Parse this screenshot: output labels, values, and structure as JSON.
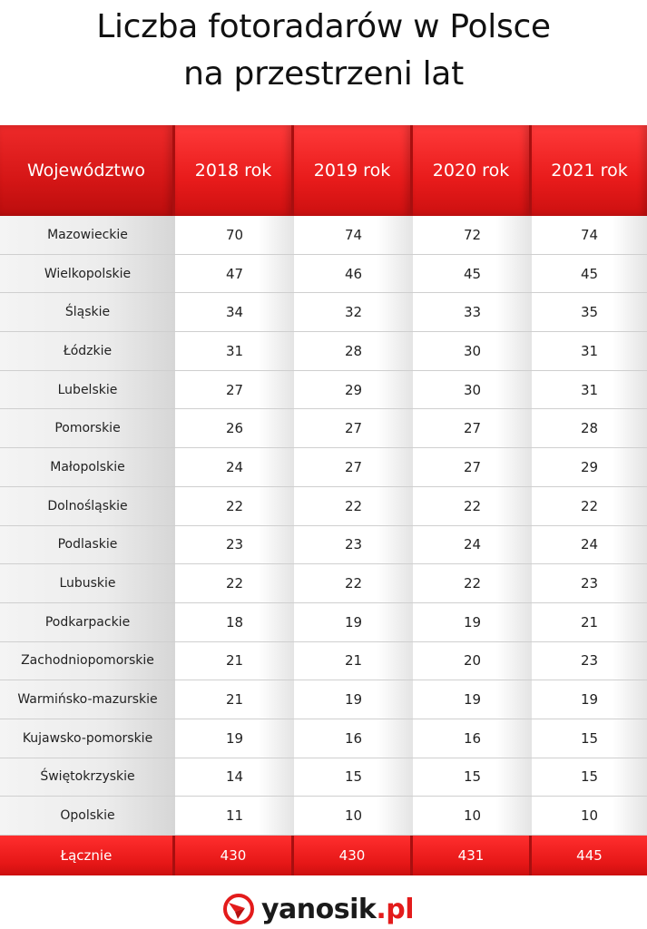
{
  "title_line1": "Liczba fotoradarów w Polsce",
  "title_line2": "na przestrzeni lat",
  "brand_color": "#e61717",
  "logo": {
    "name": "yanosik",
    "tld": ".pl",
    "icon": "yanosik-logo-icon"
  },
  "chart_data": {
    "type": "table",
    "columns": [
      "Województwo",
      "2018 rok",
      "2019 rok",
      "2020 rok",
      "2021 rok"
    ],
    "rows": [
      [
        "Mazowieckie",
        "70",
        "74",
        "72",
        "74"
      ],
      [
        "Wielkopolskie",
        "47",
        "46",
        "45",
        "45"
      ],
      [
        "Śląskie",
        "34",
        "32",
        "33",
        "35"
      ],
      [
        "Łódzkie",
        "31",
        "28",
        "30",
        "31"
      ],
      [
        "Lubelskie",
        "27",
        "29",
        "30",
        "31"
      ],
      [
        "Pomorskie",
        "26",
        "27",
        "27",
        "28"
      ],
      [
        "Małopolskie",
        "24",
        "27",
        "27",
        "29"
      ],
      [
        "Dolnośląskie",
        "22",
        "22",
        "22",
        "22"
      ],
      [
        "Podlaskie",
        "23",
        "23",
        "24",
        "24"
      ],
      [
        "Lubuskie",
        "22",
        "22",
        "22",
        "23"
      ],
      [
        "Podkarpackie",
        "18",
        "19",
        "19",
        "21"
      ],
      [
        "Zachodniopomorskie",
        "21",
        "21",
        "20",
        "23"
      ],
      [
        "Warmińsko-mazurskie",
        "21",
        "19",
        "19",
        "19"
      ],
      [
        "Kujawsko-pomorskie",
        "19",
        "16",
        "16",
        "15"
      ],
      [
        "Świętokrzyskie",
        "14",
        "15",
        "15",
        "15"
      ],
      [
        "Opolskie",
        "11",
        "10",
        "10",
        "10"
      ]
    ],
    "total": [
      "Łącznie",
      "430",
      "430",
      "431",
      "445"
    ]
  }
}
